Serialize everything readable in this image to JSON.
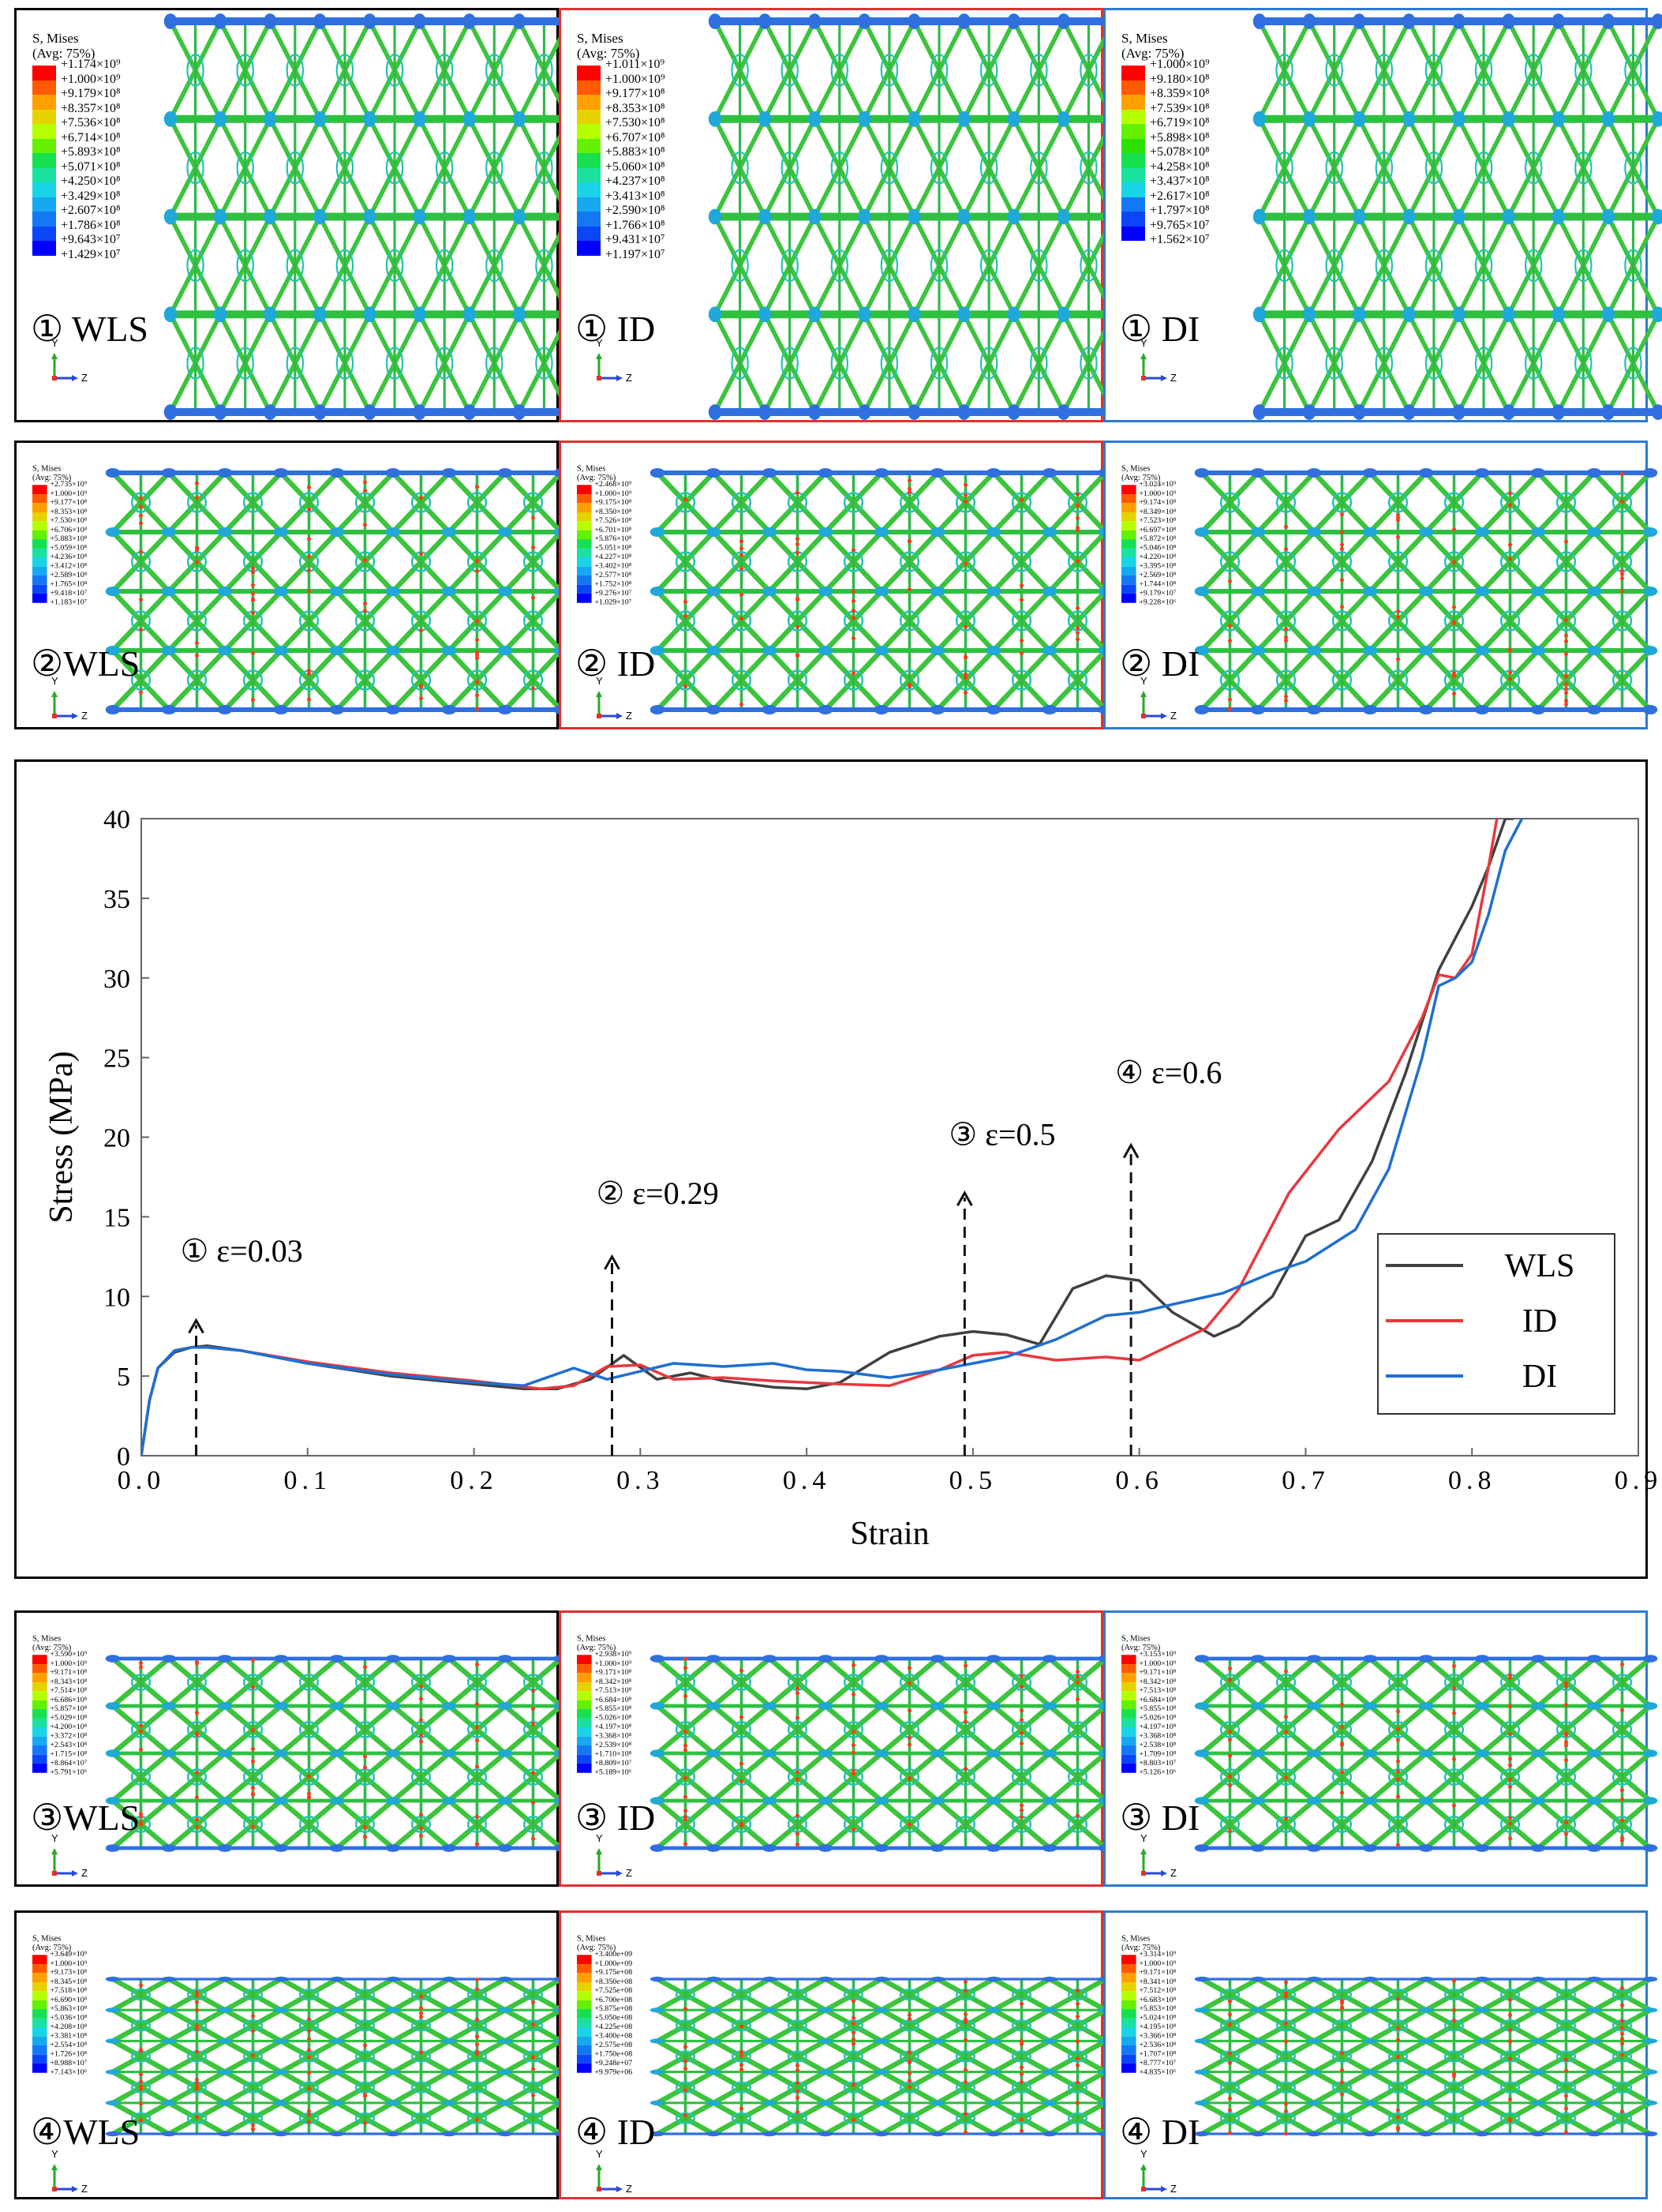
{
  "figure": {
    "rows": [
      {
        "step": "①",
        "panels": [
          {
            "label": "① WLS",
            "frame_color": "#000000",
            "legend_title": "S, Mises\n(Avg: 75%)",
            "legend_values": [
              "+1.174×10⁹",
              "+1.000×10⁹",
              "+9.179×10⁸",
              "+8.357×10⁸",
              "+7.536×10⁸",
              "+6.714×10⁸",
              "+5.893×10⁸",
              "+5.071×10⁸",
              "+4.250×10⁸",
              "+3.429×10⁸",
              "+2.607×10⁸",
              "+1.786×10⁸",
              "+9.643×10⁷",
              "+1.429×10⁷"
            ]
          },
          {
            "label": "① ID",
            "frame_color": "#e03030",
            "legend_title": "S, Mises\n(Avg: 75%)",
            "legend_values": [
              "+1.011×10⁹",
              "+1.000×10⁹",
              "+9.177×10⁸",
              "+8.353×10⁸",
              "+7.530×10⁸",
              "+6.707×10⁸",
              "+5.883×10⁸",
              "+5.060×10⁸",
              "+4.237×10⁸",
              "+3.413×10⁸",
              "+2.590×10⁸",
              "+1.766×10⁸",
              "+9.431×10⁷",
              "+1.197×10⁷"
            ]
          },
          {
            "label": "① DI",
            "frame_color": "#2a7bd0",
            "legend_title": "S, Mises\n(Avg: 75%)",
            "legend_values": [
              "+1.000×10⁹",
              "+9.180×10⁸",
              "+8.359×10⁸",
              "+7.539×10⁸",
              "+6.719×10⁸",
              "+5.898×10⁸",
              "+5.078×10⁸",
              "+4.258×10⁸",
              "+3.437×10⁸",
              "+2.617×10⁸",
              "+1.797×10⁸",
              "+9.765×10⁷",
              "+1.562×10⁷"
            ]
          }
        ]
      },
      {
        "step": "②",
        "panels": [
          {
            "label": "②WLS",
            "frame_color": "#000000",
            "legend_title": "S, Mises\n(Avg: 75%)",
            "legend_values": [
              "+2.735×10⁹",
              "+1.000×10⁹",
              "+9.177×10⁸",
              "+8.353×10⁸",
              "+7.530×10⁸",
              "+6.706×10⁸",
              "+5.883×10⁸",
              "+5.059×10⁸",
              "+4.236×10⁸",
              "+3.412×10⁸",
              "+2.589×10⁸",
              "+1.765×10⁸",
              "+9.418×10⁷",
              "+1.183×10⁷"
            ]
          },
          {
            "label": "② ID",
            "frame_color": "#e03030",
            "legend_title": "S, Mises\n(Avg: 75%)",
            "legend_values": [
              "+2.468×10⁹",
              "+1.000×10⁹",
              "+9.175×10⁸",
              "+8.350×10⁸",
              "+7.526×10⁸",
              "+6.701×10⁸",
              "+5.876×10⁸",
              "+5.051×10⁸",
              "+4.227×10⁸",
              "+3.402×10⁸",
              "+2.577×10⁸",
              "+1.752×10⁸",
              "+9.276×10⁷",
              "+1.029×10⁷"
            ]
          },
          {
            "label": "② DI",
            "frame_color": "#2a7bd0",
            "legend_title": "S, Mises\n(Avg: 75%)",
            "legend_values": [
              "+3.024×10⁹",
              "+1.000×10⁹",
              "+9.174×10⁸",
              "+8.349×10⁸",
              "+7.523×10⁸",
              "+6.697×10⁸",
              "+5.872×10⁸",
              "+5.046×10⁸",
              "+4.220×10⁸",
              "+3.395×10⁸",
              "+2.569×10⁸",
              "+1.744×10⁸",
              "+9.179×10⁷",
              "+9.228×10⁶"
            ]
          }
        ]
      },
      {
        "step": "③",
        "panels": [
          {
            "label": "③WLS",
            "frame_color": "#000000",
            "legend_title": "S, Mises\n(Avg: 75%)",
            "legend_values": [
              "+3.590×10⁹",
              "+1.000×10⁹",
              "+9.171×10⁸",
              "+8.343×10⁸",
              "+7.514×10⁸",
              "+6.686×10⁸",
              "+5.857×10⁸",
              "+5.029×10⁸",
              "+4.200×10⁸",
              "+3.372×10⁸",
              "+2.543×10⁸",
              "+1.715×10⁸",
              "+8.864×10⁷",
              "+5.791×10⁶"
            ]
          },
          {
            "label": "③ ID",
            "frame_color": "#e03030",
            "legend_title": "S, Mises\n(Avg: 75%)",
            "legend_values": [
              "+2.938×10⁹",
              "+1.000×10⁹",
              "+9.171×10⁸",
              "+8.342×10⁸",
              "+7.513×10⁸",
              "+6.684×10⁸",
              "+5.855×10⁸",
              "+5.026×10⁸",
              "+4.197×10⁸",
              "+3.368×10⁸",
              "+2.539×10⁸",
              "+1.710×10⁸",
              "+8.809×10⁷",
              "+5.189×10⁶"
            ]
          },
          {
            "label": "③ DI",
            "frame_color": "#2a7bd0",
            "legend_title": "S, Mises\n(Avg: 75%)",
            "legend_values": [
              "+3.153×10⁹",
              "+1.000×10⁹",
              "+9.171×10⁸",
              "+8.342×10⁸",
              "+7.513×10⁸",
              "+6.684×10⁸",
              "+5.855×10⁸",
              "+5.026×10⁸",
              "+4.197×10⁸",
              "+3.368×10⁸",
              "+2.538×10⁸",
              "+1.709×10⁸",
              "+8.803×10⁷",
              "+5.126×10⁶"
            ]
          }
        ]
      },
      {
        "step": "④",
        "panels": [
          {
            "label": "④WLS",
            "frame_color": "#000000",
            "legend_title": "S, Mises\n(Avg: 75%)",
            "legend_values": [
              "+3.649×10⁹",
              "+1.000×10⁹",
              "+9.173×10⁸",
              "+8.345×10⁸",
              "+7.518×10⁸",
              "+6.690×10⁸",
              "+5.863×10⁸",
              "+5.036×10⁸",
              "+4.208×10⁸",
              "+3.381×10⁸",
              "+2.554×10⁸",
              "+1.726×10⁸",
              "+8.988×10⁷",
              "+7.143×10⁶"
            ]
          },
          {
            "label": "④ ID",
            "frame_color": "#e03030",
            "legend_title": "S, Mises\n(Avg: 75%)",
            "legend_values": [
              "+3.400e+09",
              "+1.000e+09",
              "+9.175e+08",
              "+8.350e+08",
              "+7.525e+08",
              "+6.700e+08",
              "+5.875e+08",
              "+5.050e+08",
              "+4.225e+08",
              "+3.400e+08",
              "+2.575e+08",
              "+1.750e+08",
              "+9.248e+07",
              "+9.979e+06"
            ]
          },
          {
            "label": "④ DI",
            "frame_color": "#2a7bd0",
            "legend_title": "S, Mises\n(Avg: 75%)",
            "legend_values": [
              "+3.314×10⁹",
              "+1.000×10⁹",
              "+9.171×10⁸",
              "+8.341×10⁸",
              "+7.512×10⁸",
              "+6.683×10⁸",
              "+5.853×10⁸",
              "+5.024×10⁸",
              "+4.195×10⁸",
              "+3.366×10⁸",
              "+2.536×10⁸",
              "+1.707×10⁸",
              "+8.777×10⁷",
              "+4.835×10⁶"
            ]
          }
        ]
      }
    ],
    "axis_triad": {
      "y": "Y",
      "z": "Z"
    },
    "colors": {
      "wls": "#404040",
      "id": "#e8383d",
      "di": "#1f6fd1",
      "lattice_green": "#3cc43c",
      "lattice_blue": "#2f6fe0"
    }
  },
  "chart_data": {
    "type": "line",
    "title": "",
    "xlabel": "Strain",
    "ylabel": "Stress (MPa)",
    "xlim": [
      0,
      0.9
    ],
    "ylim": [
      0,
      40
    ],
    "xticks": [
      "0.0",
      "0.1",
      "0.2",
      "0.3",
      "0.4",
      "0.5",
      "0.6",
      "0.7",
      "0.8",
      "0.9"
    ],
    "yticks": [
      "0",
      "5",
      "10",
      "15",
      "20",
      "25",
      "30",
      "35",
      "40"
    ],
    "grid": false,
    "legend_position": "right",
    "series": [
      {
        "name": "WLS",
        "color": "#404040",
        "x": [
          0,
          0.005,
          0.01,
          0.02,
          0.03,
          0.04,
          0.06,
          0.1,
          0.15,
          0.2,
          0.23,
          0.25,
          0.27,
          0.29,
          0.31,
          0.33,
          0.35,
          0.38,
          0.4,
          0.42,
          0.45,
          0.48,
          0.5,
          0.52,
          0.54,
          0.56,
          0.58,
          0.6,
          0.62,
          0.645,
          0.66,
          0.68,
          0.7,
          0.72,
          0.74,
          0.76,
          0.78,
          0.8,
          0.81,
          0.82,
          0.825
        ],
        "y": [
          0,
          3.5,
          5.5,
          6.5,
          6.8,
          6.9,
          6.6,
          5.8,
          5.0,
          4.5,
          4.2,
          4.2,
          4.8,
          6.3,
          4.8,
          5.2,
          4.7,
          4.3,
          4.2,
          4.6,
          6.5,
          7.5,
          7.8,
          7.6,
          7.0,
          10.5,
          11.3,
          11.0,
          9.0,
          7.5,
          8.2,
          10.0,
          13.8,
          14.8,
          18.5,
          24.0,
          30.5,
          34.5,
          37.0,
          40.0,
          40.0
        ]
      },
      {
        "name": "ID",
        "color": "#e8383d",
        "x": [
          0,
          0.005,
          0.01,
          0.02,
          0.03,
          0.04,
          0.06,
          0.1,
          0.15,
          0.2,
          0.24,
          0.26,
          0.28,
          0.3,
          0.32,
          0.35,
          0.38,
          0.4,
          0.42,
          0.45,
          0.48,
          0.5,
          0.52,
          0.55,
          0.58,
          0.6,
          0.62,
          0.64,
          0.66,
          0.69,
          0.72,
          0.75,
          0.77,
          0.78,
          0.79,
          0.8,
          0.81,
          0.815
        ],
        "y": [
          0,
          3.5,
          5.5,
          6.6,
          6.8,
          6.8,
          6.6,
          5.9,
          5.2,
          4.7,
          4.2,
          4.4,
          5.6,
          5.7,
          4.8,
          4.9,
          4.7,
          4.6,
          4.5,
          4.4,
          5.4,
          6.3,
          6.5,
          6.0,
          6.2,
          6.0,
          7.0,
          8.0,
          10.5,
          16.5,
          20.5,
          23.5,
          27.5,
          30.2,
          30.0,
          31.5,
          37.0,
          40.0
        ]
      },
      {
        "name": "DI",
        "color": "#1f6fd1",
        "x": [
          0,
          0.005,
          0.01,
          0.02,
          0.03,
          0.04,
          0.06,
          0.1,
          0.15,
          0.2,
          0.23,
          0.26,
          0.28,
          0.3,
          0.32,
          0.35,
          0.38,
          0.4,
          0.42,
          0.45,
          0.48,
          0.5,
          0.52,
          0.55,
          0.58,
          0.6,
          0.62,
          0.65,
          0.68,
          0.7,
          0.73,
          0.75,
          0.77,
          0.78,
          0.79,
          0.8,
          0.81,
          0.82,
          0.83
        ],
        "y": [
          0,
          3.5,
          5.5,
          6.6,
          6.8,
          6.8,
          6.6,
          5.8,
          5.1,
          4.6,
          4.4,
          5.5,
          4.8,
          5.3,
          5.8,
          5.6,
          5.8,
          5.4,
          5.3,
          4.9,
          5.4,
          5.8,
          6.2,
          7.3,
          8.8,
          9.0,
          9.5,
          10.2,
          11.5,
          12.2,
          14.2,
          18.0,
          25.0,
          29.5,
          30.0,
          31.0,
          34.0,
          38.0,
          40.0
        ]
      }
    ],
    "annotations": [
      {
        "text": "① ε=0.03",
        "x": 0.033,
        "y_from": 0,
        "y_to": 8.5,
        "label_y": 12.2
      },
      {
        "text": "② ε=0.29",
        "x": 0.283,
        "y_from": 0,
        "y_to": 12.5,
        "label_y": 15.8
      },
      {
        "text": "③ ε=0.5",
        "x": 0.495,
        "y_from": 0,
        "y_to": 16.5,
        "label_y": 19.5
      },
      {
        "text": "④ ε=0.6",
        "x": 0.595,
        "y_from": 0,
        "y_to": 19.5,
        "label_y": 23.4
      }
    ]
  }
}
